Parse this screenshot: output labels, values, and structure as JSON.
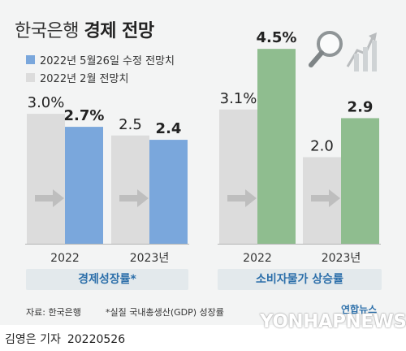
{
  "title_light": "한국은행",
  "title_bold": "경제 전망",
  "legend": [
    {
      "label": "2022년 5월26일 수정 전망치",
      "color": "#7aa7dc"
    },
    {
      "label": "2022년 2월 전망치",
      "color": "#dcdcdc"
    }
  ],
  "groups": [
    "경제성장률*",
    "소비자물가 상승률"
  ],
  "source": "자료: 한국은행",
  "footnote": "*실질 국내총생산(GDP) 성장률",
  "watermark": "YONHAPNEWS",
  "watermark_ko": "연합뉴스",
  "credit": {
    "author": "김영은 기자",
    "date": "20220526"
  },
  "colors": {
    "feb": "#dcdcdc",
    "may_growth": "#7aa7dc",
    "may_cpi": "#8fbd8f",
    "arrow": "#a5a5a5"
  },
  "chart_data": [
    {
      "type": "bar",
      "title": "경제성장률*",
      "categories": [
        "2022",
        "2023년"
      ],
      "series": [
        {
          "name": "2022년 2월 전망치",
          "values": [
            3.0,
            2.5
          ],
          "labels": [
            "3.0%",
            "2.5"
          ]
        },
        {
          "name": "2022년 5월26일 수정 전망치",
          "values": [
            2.7,
            2.4
          ],
          "labels": [
            "2.7%",
            "2.4"
          ]
        }
      ]
    },
    {
      "type": "bar",
      "title": "소비자물가 상승률",
      "categories": [
        "2022",
        "2023년"
      ],
      "series": [
        {
          "name": "2022년 2월 전망치",
          "values": [
            3.1,
            2.0
          ],
          "labels": [
            "3.1%",
            "2.0"
          ]
        },
        {
          "name": "2022년 5월26일 수정 전망치",
          "values": [
            4.5,
            2.9
          ],
          "labels": [
            "4.5%",
            "2.9"
          ]
        }
      ]
    }
  ]
}
